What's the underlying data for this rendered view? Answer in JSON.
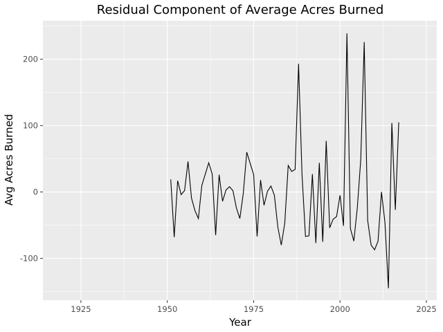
{
  "chart_data": {
    "type": "line",
    "title": "Residual Component of Average Acres Burned",
    "xlabel": "Year",
    "ylabel": "Avg Acres Burned",
    "xlim": [
      1914,
      2028
    ],
    "ylim": [
      -163,
      258
    ],
    "x_ticks": [
      1925,
      1950,
      1975,
      2000,
      2025
    ],
    "x_tick_labels": [
      "1925",
      "1950",
      "1975",
      "2000",
      "2025"
    ],
    "y_ticks": [
      -100,
      0,
      100,
      200
    ],
    "y_tick_labels": [
      "-100",
      "0",
      "100",
      "200"
    ],
    "grid": true,
    "background": "#ebebeb",
    "line_color": "#000000",
    "legend": "none",
    "x": [
      1951,
      1952,
      1953,
      1954,
      1955,
      1956,
      1957,
      1958,
      1959,
      1960,
      1961,
      1962,
      1963,
      1964,
      1965,
      1966,
      1967,
      1968,
      1969,
      1970,
      1971,
      1972,
      1973,
      1974,
      1975,
      1976,
      1977,
      1978,
      1979,
      1980,
      1981,
      1982,
      1983,
      1984,
      1985,
      1986,
      1987,
      1988,
      1989,
      1990,
      1991,
      1992,
      1993,
      1994,
      1995,
      1996,
      1997,
      1998,
      1999,
      2000,
      2001,
      2002,
      2003,
      2004,
      2005,
      2006,
      2007,
      2008,
      2009,
      2010,
      2011,
      2012,
      2013,
      2014,
      2015,
      2016,
      2017
    ],
    "values": [
      19,
      -68,
      17,
      -4,
      2,
      46,
      -9,
      -28,
      -40,
      10,
      27,
      44,
      27,
      -65,
      26,
      -14,
      3,
      8,
      2,
      -24,
      -40,
      -2,
      60,
      43,
      26,
      -67,
      18,
      -20,
      1,
      9,
      -5,
      -53,
      -80,
      -47,
      40,
      31,
      34,
      193,
      26,
      -67,
      -66,
      27,
      -77,
      44,
      -75,
      77,
      -54,
      -41,
      -37,
      -5,
      -51,
      239,
      -55,
      -74,
      -24,
      49,
      226,
      -43,
      -80,
      -87,
      -74,
      0,
      -46,
      -145,
      104,
      -27,
      105
    ]
  }
}
